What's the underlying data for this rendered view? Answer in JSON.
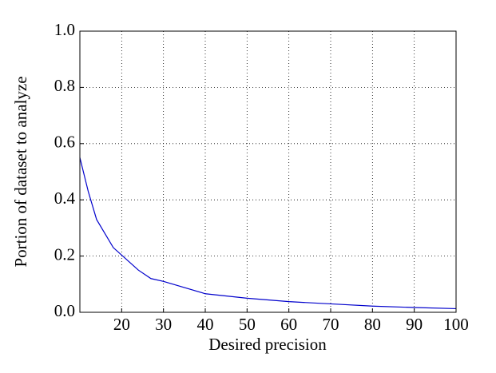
{
  "chart_data": {
    "type": "line",
    "x": [
      10,
      12,
      14,
      18,
      24,
      27,
      30,
      40,
      50,
      60,
      70,
      80,
      90,
      100
    ],
    "values": [
      0.55,
      0.43,
      0.33,
      0.23,
      0.15,
      0.12,
      0.11,
      0.066,
      0.05,
      0.038,
      0.03,
      0.022,
      0.017,
      0.013
    ],
    "color": "#0000cc",
    "xlabel": "Desired precision",
    "ylabel": "Portion of dataset to analyze",
    "xlim": [
      10,
      100
    ],
    "xticks": [
      20,
      30,
      40,
      50,
      60,
      70,
      80,
      90,
      100
    ],
    "ylim": [
      0,
      1
    ],
    "yticks": [
      {
        "value": 0,
        "label": "0.0"
      },
      {
        "value": 0.2,
        "label": "0.2"
      },
      {
        "value": 0.4,
        "label": "0.4"
      },
      {
        "value": 0.6,
        "label": "0.6"
      },
      {
        "value": 0.8,
        "label": "0.8"
      },
      {
        "value": 1,
        "label": "1.0"
      }
    ],
    "grid": true
  }
}
